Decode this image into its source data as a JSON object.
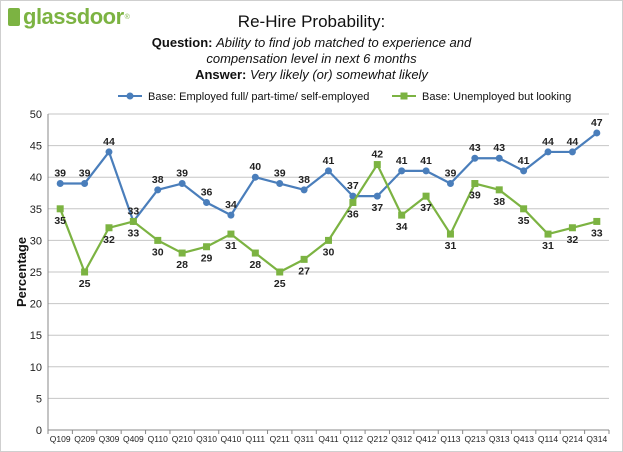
{
  "brand": {
    "name": "glassdoor",
    "mark": "®",
    "color": "#7cb342"
  },
  "header": {
    "title": "Re-Hire Probability:",
    "question_label": "Question:",
    "question_line1": "Ability to find job matched to experience and",
    "question_line2": "compensation level in next 6 months",
    "answer_label": "Answer:",
    "answer_text": "Very likely (or) somewhat likely"
  },
  "chart_data": {
    "type": "line",
    "title": "Re-Hire Probability:",
    "xlabel": "",
    "ylabel": "Percentage",
    "ylim": [
      0,
      50
    ],
    "yticks": [
      0,
      5,
      10,
      15,
      20,
      25,
      30,
      35,
      40,
      45,
      50
    ],
    "grid": true,
    "legend_position": "top",
    "categories": [
      "Q109",
      "Q209",
      "Q309",
      "Q409",
      "Q110",
      "Q210",
      "Q310",
      "Q410",
      "Q111",
      "Q211",
      "Q311",
      "Q411",
      "Q112",
      "Q212",
      "Q312",
      "Q412",
      "Q113",
      "Q213",
      "Q313",
      "Q413",
      "Q114",
      "Q214",
      "Q314"
    ],
    "series": [
      {
        "name": "Base: Employed full/ part-time/ self-employed",
        "color": "#4a7ebb",
        "marker": "circle",
        "values": [
          39,
          39,
          44,
          33,
          38,
          39,
          36,
          34,
          40,
          39,
          38,
          41,
          37,
          37,
          41,
          41,
          39,
          43,
          43,
          41,
          44,
          44,
          47
        ]
      },
      {
        "name": "Base: Unemployed but looking",
        "color": "#7cb342",
        "marker": "square",
        "values": [
          35,
          25,
          32,
          33,
          30,
          28,
          29,
          31,
          28,
          25,
          27,
          30,
          36,
          42,
          34,
          37,
          31,
          39,
          38,
          35,
          31,
          32,
          33
        ]
      }
    ]
  }
}
